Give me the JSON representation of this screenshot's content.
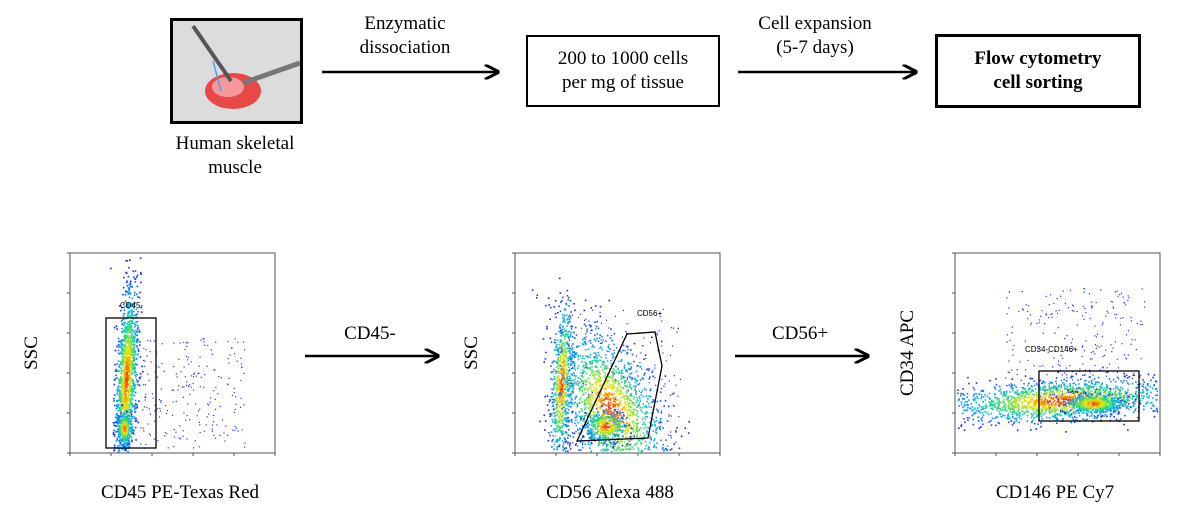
{
  "top_row": {
    "photo_caption": [
      "Human skeletal",
      "muscle"
    ],
    "step1_label": [
      "Enzymatic",
      "dissociation"
    ],
    "box1": [
      "200 to 1000 cells",
      "per mg of tissue"
    ],
    "step2_label": [
      "Cell expansion",
      "(5-7 days)"
    ],
    "box2": [
      "Flow cytometry",
      "cell sorting"
    ]
  },
  "plots": [
    {
      "ylabel": "SSC",
      "xlabel": "CD45 PE-Texas Red",
      "gate": "CD45-"
    },
    {
      "ylabel": "SSC",
      "xlabel": "CD56 Alexa 488",
      "gate": "CD56+"
    },
    {
      "ylabel": "CD34 APC",
      "xlabel": "CD146 PE Cy7",
      "gate": "CD34-CD146+"
    }
  ],
  "arrows": {
    "a1": "CD45-",
    "a2": "CD56+"
  },
  "colors": {
    "arrow": "#000000",
    "density_low": "#1a1aff",
    "density_high": "#ff2000"
  }
}
